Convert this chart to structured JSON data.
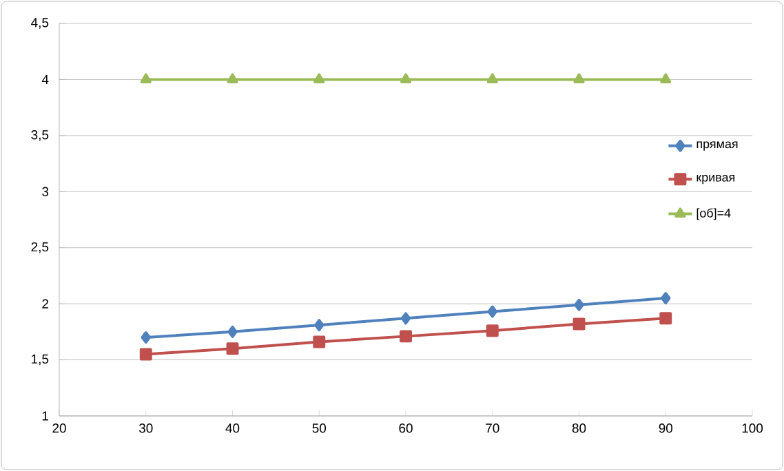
{
  "chart_data": {
    "type": "line",
    "x": [
      30,
      40,
      50,
      60,
      70,
      80,
      90
    ],
    "series": [
      {
        "name": "прямая",
        "color": "#4f81bd",
        "marker": "diamond",
        "values": [
          1.7,
          1.75,
          1.81,
          1.87,
          1.93,
          1.99,
          2.05
        ]
      },
      {
        "name": "кривая",
        "color": "#c0504d",
        "marker": "square",
        "values": [
          1.55,
          1.6,
          1.66,
          1.71,
          1.76,
          1.82,
          1.87
        ]
      },
      {
        "name": "[об]=4",
        "color": "#9bbb59",
        "marker": "triangle",
        "values": [
          4,
          4,
          4,
          4,
          4,
          4,
          4
        ]
      }
    ],
    "xlim": [
      20,
      100
    ],
    "xticks": [
      20,
      30,
      40,
      50,
      60,
      70,
      80,
      90,
      100
    ],
    "ylim": [
      1,
      4.5
    ],
    "yticks": [
      1,
      {
        "value": 1.5,
        "label": "1,5"
      },
      2,
      {
        "value": 2.5,
        "label": "2,5"
      },
      3,
      {
        "value": 3.5,
        "label": "3,5"
      },
      4,
      {
        "value": 4.5,
        "label": "4,5"
      }
    ],
    "grid": "y",
    "legend": "right",
    "line_style": "solid"
  }
}
